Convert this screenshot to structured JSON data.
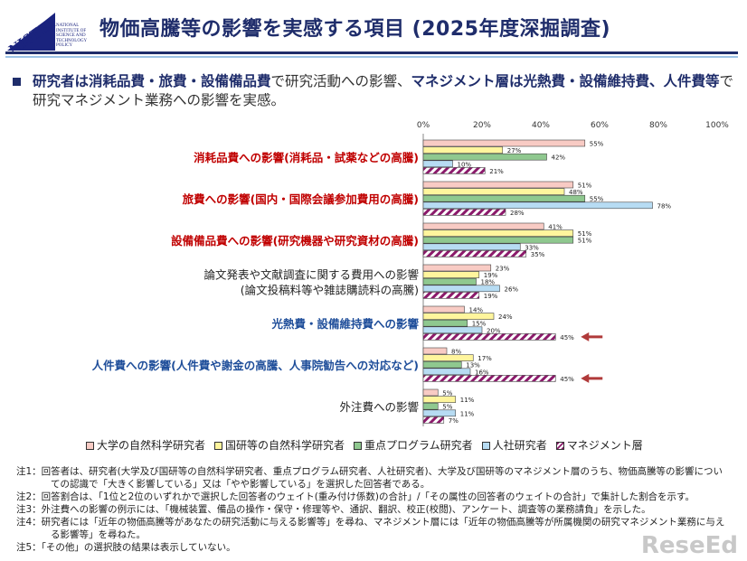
{
  "header": {
    "title": "物価高騰等の影響を実感する項目 (2025年度深掘調査)",
    "logo_text": "NISTEP",
    "logo_sub": [
      "NATIONAL",
      "INSTITUTE OF",
      "SCIENCE AND",
      "TECHNOLOGY",
      "POLICY"
    ]
  },
  "lead": {
    "b1": "研究者は消耗品費・旅費・設備備品費",
    "t1": "で研究活動への影響、",
    "b2": "マネジメント層は光熱費・設備維持費、人件費等",
    "t2": "で研究マネジメント業務への影響を実感。"
  },
  "chart_data": {
    "type": "bar",
    "orientation": "horizontal",
    "xlim": [
      0,
      100
    ],
    "ticks": [
      "0%",
      "20%",
      "40%",
      "60%",
      "80%",
      "100%"
    ],
    "categories": [
      "消耗品費への影響(消耗品・試薬などの高騰)",
      "旅費への影響(国内・国際会議参加費用の高騰)",
      "設備備品費への影響(研究機器や研究資材の高騰)",
      "論文発表や文献調査に関する費用への影響\n(論文投稿料等や雑誌購読料の高騰)",
      "光熱費・設備維持費への影響",
      "人件費への影響(人件費や謝金の高騰、人事院勧告への対応など)",
      "外注費への影響"
    ],
    "category_colors": [
      "#c00000",
      "#c00000",
      "#c00000",
      "#222222",
      "#1f4e9a",
      "#1f4e9a",
      "#222222"
    ],
    "series": [
      {
        "name": "大学の自然科学研究者",
        "color": "#f8cbc4",
        "values": [
          55,
          51,
          41,
          23,
          14,
          8,
          5
        ]
      },
      {
        "name": "国研等の自然科学研究者",
        "color": "#fff59d",
        "values": [
          27,
          48,
          51,
          19,
          24,
          17,
          11
        ]
      },
      {
        "name": "重点プログラム研究者",
        "color": "#8fc88f",
        "values": [
          42,
          55,
          51,
          18,
          15,
          13,
          5
        ]
      },
      {
        "name": "人社研究者",
        "color": "#b7dcf3",
        "values": [
          10,
          78,
          33,
          26,
          20,
          16,
          11
        ]
      },
      {
        "name": "マネジメント層",
        "color": "#8b1a6b",
        "pattern": "hatch",
        "values": [
          21,
          28,
          35,
          19,
          45,
          45,
          7
        ]
      }
    ],
    "highlight_arrows": [
      4,
      5
    ]
  },
  "notes": [
    "注1：回答者は、研究者(大学及び国研等の自然科学研究者、重点プログラム研究者、人社研究者)、大学及び国研等のマネジメント層のうち、物価高騰等の影響についての認識で「大きく影響している」又は「やや影響している」を選択した回答者である。",
    "注2：回答割合は、「1位と2位のいずれかで選択した回答者のウェイト(重み付け係数)の合計」/「その属性の回答者のウェイトの合計」で集計した割合を示す。",
    "注3：外注費への影響の例示には、「機械装置、備品の操作・保守・修理等や、通訳、翻訳、校正(校閲)、アンケート、調査等の業務請負」を示した。",
    "注4：研究者には「近年の物価高騰等があなたの研究活動に与える影響等」を尋ね、マネジメント層には「近年の物価高騰等が所属機関の研究マネジメント業務に与える影響等」を尋ねた。",
    "注5：「その他」の選択肢の結果は表示していない。"
  ],
  "watermark": "ReseEd"
}
